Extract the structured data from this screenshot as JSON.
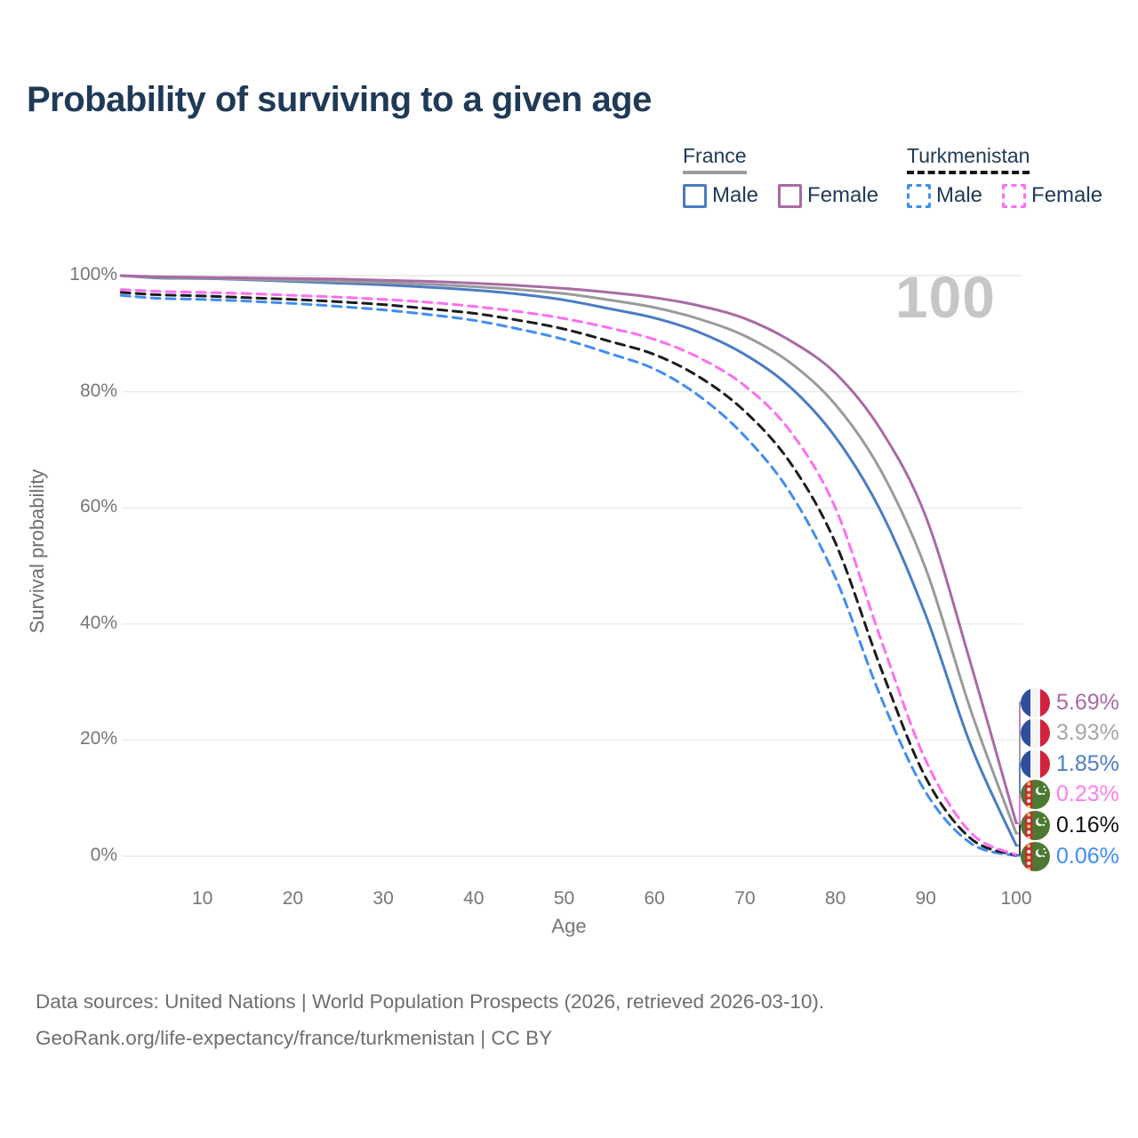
{
  "header": {
    "title": "Probability of surviving to a given age"
  },
  "legend": {
    "groups": [
      {
        "name": "France",
        "line_style": "solid",
        "underline_color": "#9b9b9b",
        "items": [
          {
            "label": "Male",
            "color": "#4b7cc4"
          },
          {
            "label": "Female",
            "color": "#a96aa4"
          }
        ]
      },
      {
        "name": "Turkmenistan",
        "line_style": "dashed",
        "underline_color": "#161616",
        "items": [
          {
            "label": "Male",
            "color": "#418df2"
          },
          {
            "label": "Female",
            "color": "#ff6ef0"
          }
        ]
      }
    ]
  },
  "chart_data": {
    "type": "line",
    "title": "Probability of surviving to a given age",
    "xlabel": "Age",
    "ylabel": "Survival probability",
    "xlim": [
      1,
      100
    ],
    "ylim": [
      0,
      100
    ],
    "grid": "horizontal",
    "legend_position": "top-right",
    "hover_age_annotation": "100",
    "x_ticks": [
      {
        "label": "10",
        "value": 10
      },
      {
        "label": "20",
        "value": 20
      },
      {
        "label": "30",
        "value": 30
      },
      {
        "label": "40",
        "value": 40
      },
      {
        "label": "50",
        "value": 50
      },
      {
        "label": "60",
        "value": 60
      },
      {
        "label": "70",
        "value": 70
      },
      {
        "label": "80",
        "value": 80
      },
      {
        "label": "90",
        "value": 90
      },
      {
        "label": "100",
        "value": 100
      }
    ],
    "y_ticks": [
      {
        "label": "0%",
        "value": 0
      },
      {
        "label": "20%",
        "value": 20
      },
      {
        "label": "40%",
        "value": 40
      },
      {
        "label": "60%",
        "value": 60
      },
      {
        "label": "80%",
        "value": 80
      },
      {
        "label": "100%",
        "value": 100
      }
    ],
    "ages": [
      1,
      5,
      10,
      15,
      20,
      25,
      30,
      35,
      40,
      45,
      50,
      55,
      60,
      65,
      70,
      75,
      80,
      85,
      90,
      95,
      100
    ],
    "series": [
      {
        "id": "france-female",
        "country": "France",
        "sex": "Female",
        "color": "#a96aa4",
        "label_color": "#a96aa4",
        "dashed": false,
        "flag": "france",
        "flag_icon": "france-flag-icon",
        "end_label": "5.69%",
        "end_value": 5.69,
        "values": [
          100,
          99.8,
          99.7,
          99.6,
          99.5,
          99.4,
          99.2,
          99.0,
          98.7,
          98.3,
          97.8,
          97.1,
          96.2,
          94.8,
          92.6,
          88.8,
          83.2,
          73.5,
          58.5,
          33.0,
          5.69
        ]
      },
      {
        "id": "france-both",
        "country": "France",
        "sex": "Both sexes",
        "color": "#9a9a9a",
        "label_color": "#a6a6a6",
        "dashed": false,
        "flag": "france",
        "flag_icon": "france-flag-icon",
        "end_label": "3.93%",
        "end_value": 3.93,
        "values": [
          100,
          99.7,
          99.6,
          99.4,
          99.2,
          99.0,
          98.8,
          98.5,
          98.1,
          97.6,
          96.9,
          95.8,
          94.5,
          92.5,
          89.6,
          85.0,
          77.8,
          66.5,
          49.5,
          25.0,
          3.93
        ]
      },
      {
        "id": "france-male",
        "country": "France",
        "sex": "Male",
        "color": "#4b7cc4",
        "label_color": "#4d7ec6",
        "dashed": false,
        "flag": "france",
        "flag_icon": "france-flag-icon",
        "end_label": "1.85%",
        "end_value": 1.85,
        "values": [
          100,
          99.6,
          99.5,
          99.3,
          99.0,
          98.7,
          98.4,
          98.0,
          97.5,
          96.8,
          95.8,
          94.3,
          92.7,
          90.2,
          86.4,
          80.8,
          72.2,
          59.5,
          41.5,
          19.0,
          1.85
        ]
      },
      {
        "id": "turkmenistan-female",
        "country": "Turkmenistan",
        "sex": "Female",
        "color": "#ff6ef0",
        "label_color": "#ff7df2",
        "dashed": true,
        "flag": "turkmenistan",
        "flag_icon": "turkmenistan-flag-icon",
        "end_label": "0.23%",
        "end_value": 0.23,
        "values": [
          97.6,
          97.3,
          97.1,
          96.9,
          96.6,
          96.3,
          95.9,
          95.4,
          94.7,
          93.8,
          92.6,
          91.0,
          89.0,
          85.8,
          81.0,
          73.2,
          60.0,
          37.5,
          16.5,
          4.0,
          0.23
        ]
      },
      {
        "id": "turkmenistan-both",
        "country": "Turkmenistan",
        "sex": "Both sexes",
        "color": "#1c1c1c",
        "label_color": "#111111",
        "dashed": true,
        "flag": "turkmenistan",
        "flag_icon": "turkmenistan-flag-icon",
        "end_label": "0.16%",
        "end_value": 0.16,
        "values": [
          97.1,
          96.7,
          96.5,
          96.2,
          95.9,
          95.5,
          95.0,
          94.3,
          93.5,
          92.3,
          90.8,
          88.7,
          86.4,
          82.5,
          76.6,
          67.8,
          54.0,
          32.5,
          13.5,
          3.0,
          0.16
        ]
      },
      {
        "id": "turkmenistan-male",
        "country": "Turkmenistan",
        "sex": "Male",
        "color": "#418df2",
        "label_color": "#3e8ef4",
        "dashed": true,
        "flag": "turkmenistan",
        "flag_icon": "turkmenistan-flag-icon",
        "end_label": "0.06%",
        "end_value": 0.06,
        "values": [
          96.6,
          96.1,
          95.9,
          95.6,
          95.2,
          94.7,
          94.1,
          93.3,
          92.3,
          90.8,
          89.0,
          86.6,
          83.9,
          79.2,
          72.3,
          62.6,
          48.0,
          27.5,
          11.0,
          2.2,
          0.06
        ]
      }
    ]
  },
  "icons": {
    "france_flag": {
      "blue": "#2d4f9d",
      "white": "#f5f5f5",
      "red": "#d2223c"
    },
    "turkmenistan_flag": {
      "green": "#4d7a33",
      "red": "#c22f2f",
      "gold": "#e9c46a",
      "white": "#ffffff"
    }
  },
  "footer": {
    "line1": "Data sources: United Nations | World Population Prospects (2026, retrieved 2026-03-10).",
    "line2": "GeoRank.org/life-expectancy/france/turkmenistan | CC BY"
  }
}
